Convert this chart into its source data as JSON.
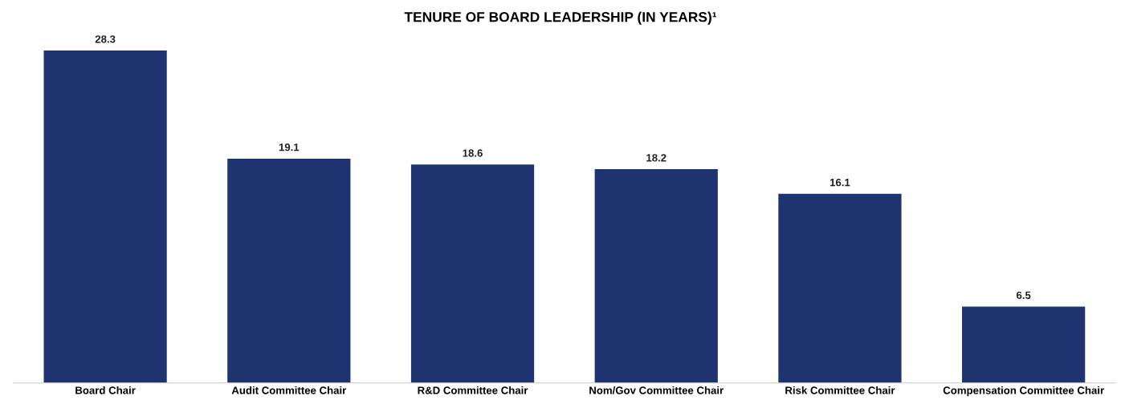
{
  "chart_data": {
    "type": "bar",
    "title": "TENURE OF BOARD LEADERSHIP (IN YEARS)¹",
    "categories": [
      "Board Chair",
      "Audit Committee Chair",
      "R&D Committee Chair",
      "Nom/Gov Committee Chair",
      "Risk Committee Chair",
      "Compensation Committee Chair"
    ],
    "values": [
      28.3,
      19.1,
      18.6,
      18.2,
      16.1,
      6.5
    ],
    "color": "#1f3370",
    "data_labels": true,
    "grid": false,
    "legend": false
  }
}
